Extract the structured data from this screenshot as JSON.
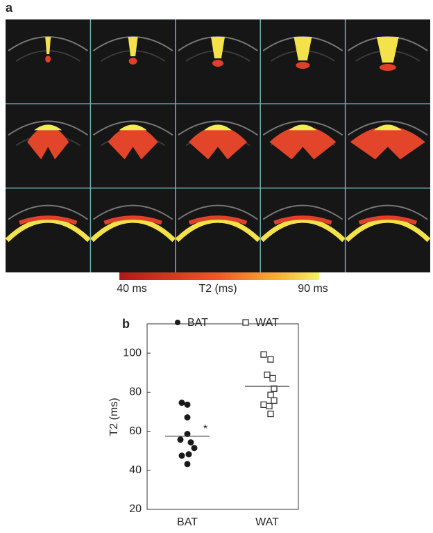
{
  "panel_a": {
    "label": "a",
    "colorbar": {
      "min_label": "40 ms",
      "title": "T2 (ms)",
      "max_label": "90 ms"
    }
  },
  "chart_data": {
    "type": "strip",
    "panel_label": "b",
    "y_label": "T2 (ms)",
    "categories": [
      "BAT",
      "WAT"
    ],
    "series": [
      {
        "name": "BAT",
        "color": "#1a1a1a",
        "marker": "circle",
        "values": [
          74.6,
          73.6,
          67.1,
          58.6,
          55.7,
          54.3,
          51.4,
          47.5,
          48.2,
          43.2
        ],
        "mean": 57.5,
        "annotation": "*"
      },
      {
        "name": "WAT",
        "color": "#333333",
        "marker": "square",
        "values": [
          99.3,
          96.8,
          88.9,
          87.1,
          81.8,
          78.6,
          75.7,
          73.6,
          72.9,
          68.9
        ],
        "mean": 83
      }
    ],
    "ylim": [
      20,
      115
    ],
    "yticks": [
      20,
      40,
      60,
      80,
      100
    ],
    "legend": "top"
  }
}
